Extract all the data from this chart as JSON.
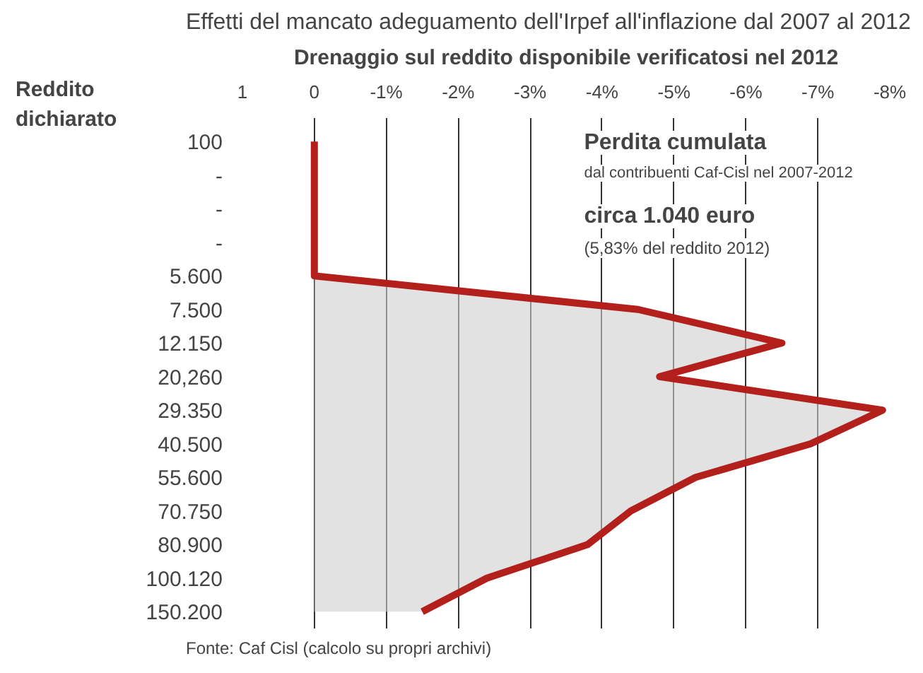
{
  "chart_data": {
    "type": "area",
    "orientation": "horizontal",
    "title": "Effetti del mancato adeguamento dell'Irpef all'inflazione dal 2007 al 2012",
    "xlabel": "Drenaggio sul reddito disponibile verificatosi nel 2012",
    "ylabel": "Reddito dichiarato",
    "categories": [
      "100",
      "-",
      "-",
      "-",
      "5.600",
      "7.500",
      "12.150",
      "20,260",
      "29.350",
      "40.500",
      "55.600",
      "70.750",
      "80.900",
      "100.120",
      "150.200"
    ],
    "series": [
      {
        "color": "#b3201c",
        "values": [
          0,
          0,
          0,
          0,
          0,
          -4.5,
          -6.5,
          -4.8,
          -7.9,
          -6.9,
          -5.3,
          -4.4,
          -3.8,
          -2.4,
          -1.5
        ]
      }
    ],
    "xlim": [
      1,
      -8
    ],
    "xticks": [
      1,
      0,
      {
        "value": -1,
        "label": "-1%"
      },
      {
        "value": -2,
        "label": "-2%"
      },
      {
        "value": -3,
        "label": "-3%"
      },
      {
        "value": -4,
        "label": "-4%"
      },
      {
        "value": -5,
        "label": "-5%"
      },
      {
        "value": -6,
        "label": "-6%"
      },
      {
        "value": -7,
        "label": "-7%"
      },
      {
        "value": -8,
        "label": "-8%"
      }
    ],
    "grid": "x",
    "annotations": [
      "Perdita cumulata",
      "dal contribuenti Caf-Cisl nel 2007-2012",
      "circa 1.040 euro",
      "(5,83% del reddito 2012)",
      "Fonte: Caf Cisl (calcolo su propri archivi)"
    ]
  }
}
